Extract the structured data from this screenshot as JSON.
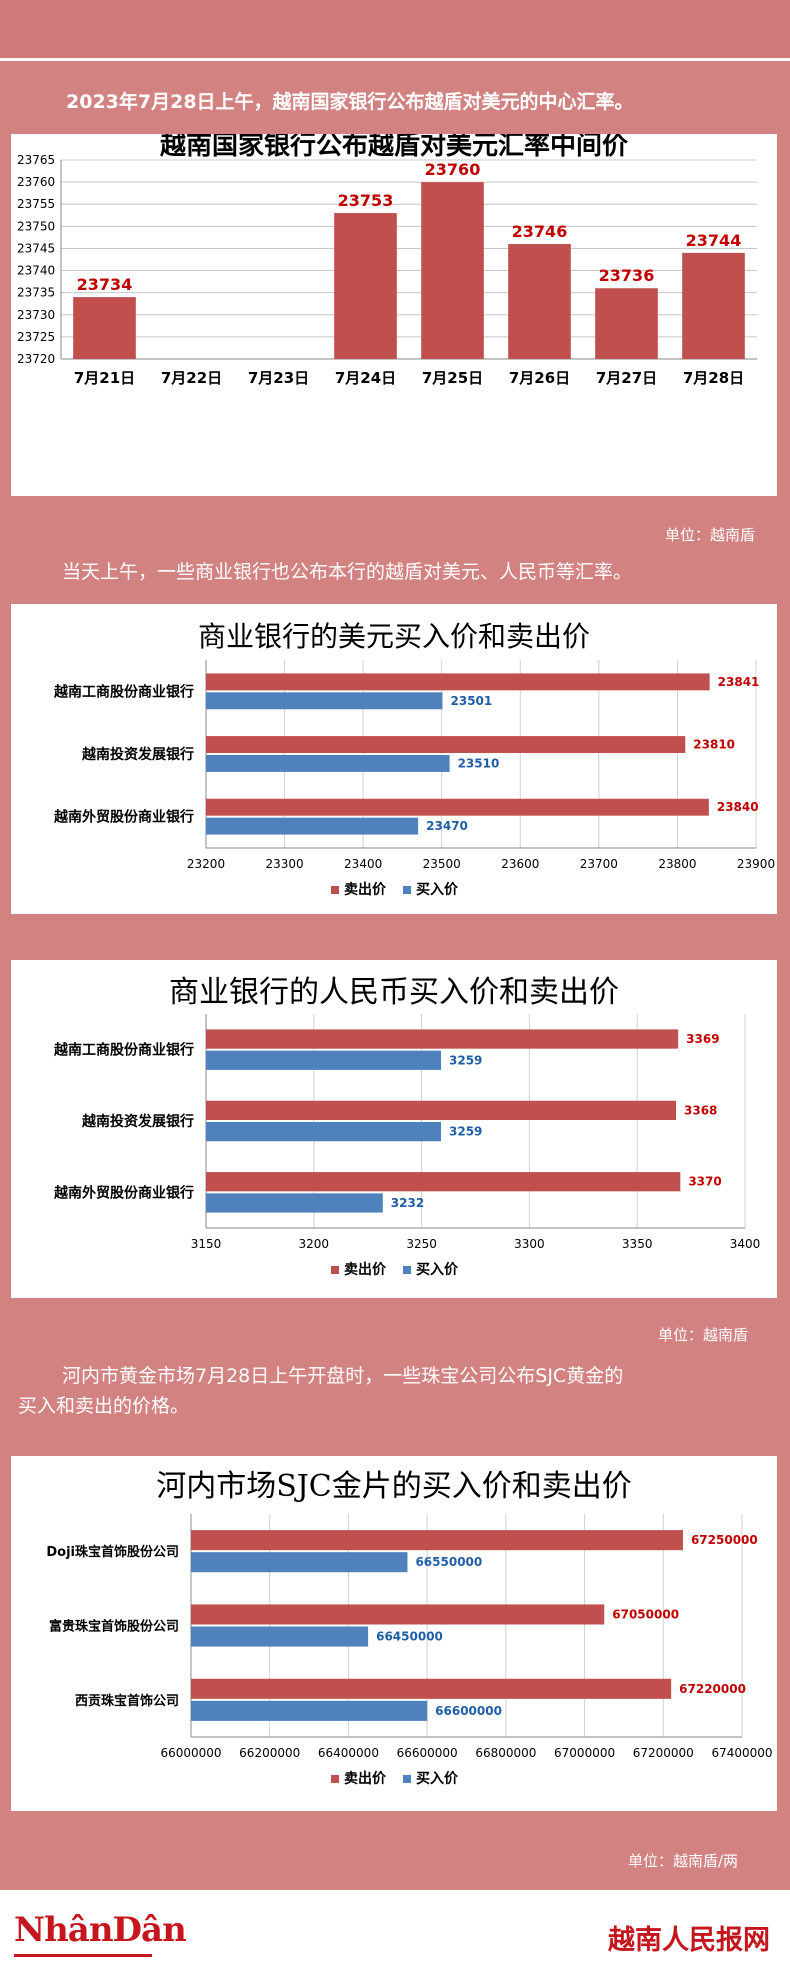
{
  "intro": {
    "p1": "2023年7月28日上午，越南国家银行公布越盾对美元的中心汇率。",
    "p2": "当天上午，一些商业银行也公布本行的越盾对美元、人民币等汇率。",
    "p3a": "河内市黄金市场7月28日上午开盘时，一些珠宝公司公布SJC黄金的",
    "p3b": "买入和卖出的价格。"
  },
  "units": {
    "u1": "单位：越南盾",
    "u2": "单位：越南盾",
    "u3": "单位：越南盾/两"
  },
  "footer": {
    "logo": "NhânDân",
    "brand": "越南人民报网"
  },
  "colors": {
    "sell": "#c0504d",
    "buy": "#4f81bd",
    "sell_label": "#c00000",
    "buy_label": "#1f5fa8"
  },
  "chart_data": [
    {
      "type": "bar",
      "title": "越南国家银行公布越盾对美元汇率中间价",
      "categories": [
        "7月21日",
        "7月22日",
        "7月23日",
        "7月24日",
        "7月25日",
        "7月26日",
        "7月27日",
        "7月28日"
      ],
      "values": [
        23734,
        null,
        null,
        23753,
        23760,
        23746,
        23736,
        23744
      ],
      "data_labels": [
        "23734",
        "",
        "",
        "23753",
        "23760",
        "23746",
        "23736",
        "23744"
      ],
      "yticks": [
        "23720",
        "23725",
        "23730",
        "23735",
        "23740",
        "23745",
        "23750",
        "23755",
        "23760",
        "23765"
      ],
      "ylim": [
        23720,
        23765
      ],
      "grid": true
    },
    {
      "type": "bar",
      "orientation": "horizontal",
      "title": "商业银行的美元买入价和卖出价",
      "categories": [
        "越南工商股份商业银行",
        "越南投资发展银行",
        "越南外贸股份商业银行"
      ],
      "series": [
        {
          "name": "卖出价",
          "values": [
            23841,
            23810,
            23840
          ],
          "labels": [
            "23841",
            "23810",
            "23840"
          ]
        },
        {
          "name": "买入价",
          "values": [
            23501,
            23510,
            23470
          ],
          "labels": [
            "23501",
            "23510",
            "23470"
          ]
        }
      ],
      "xticks": [
        "23200",
        "23300",
        "23400",
        "23500",
        "23600",
        "23700",
        "23800",
        "23900"
      ],
      "xlim": [
        23200,
        23900
      ],
      "legend": "bottom"
    },
    {
      "type": "bar",
      "orientation": "horizontal",
      "title": "商业银行的人民币买入价和卖出价",
      "categories": [
        "越南工商股份商业银行",
        "越南投资发展银行",
        "越南外贸股份商业银行"
      ],
      "series": [
        {
          "name": "卖出价",
          "values": [
            3369,
            3368,
            3370
          ],
          "labels": [
            "3369",
            "3368",
            "3370"
          ]
        },
        {
          "name": "买入价",
          "values": [
            3259,
            3259,
            3232
          ],
          "labels": [
            "3259",
            "3259",
            "3232"
          ]
        }
      ],
      "xticks": [
        "3150",
        "3200",
        "3250",
        "3300",
        "3350",
        "3400"
      ],
      "xlim": [
        3150,
        3400
      ],
      "legend": "bottom"
    },
    {
      "type": "bar",
      "orientation": "horizontal",
      "title": "河内市场SJC金片的买入价和卖出价",
      "categories": [
        "Doji珠宝首饰股份公司",
        "富贵珠宝首饰股份公司",
        "西贡珠宝首饰公司"
      ],
      "series": [
        {
          "name": "卖出价",
          "values": [
            67250000,
            67050000,
            67220000
          ],
          "labels": [
            "67250000",
            "67050000",
            "67220000"
          ]
        },
        {
          "name": "买入价",
          "values": [
            66550000,
            66450000,
            66600000
          ],
          "labels": [
            "66550000",
            "66450000",
            "66600000"
          ]
        }
      ],
      "xticks": [
        "66000000",
        "66200000",
        "66400000",
        "66600000",
        "66800000",
        "67000000",
        "67200000",
        "67400000"
      ],
      "xlim": [
        66000000,
        67400000
      ],
      "legend": "bottom"
    }
  ]
}
